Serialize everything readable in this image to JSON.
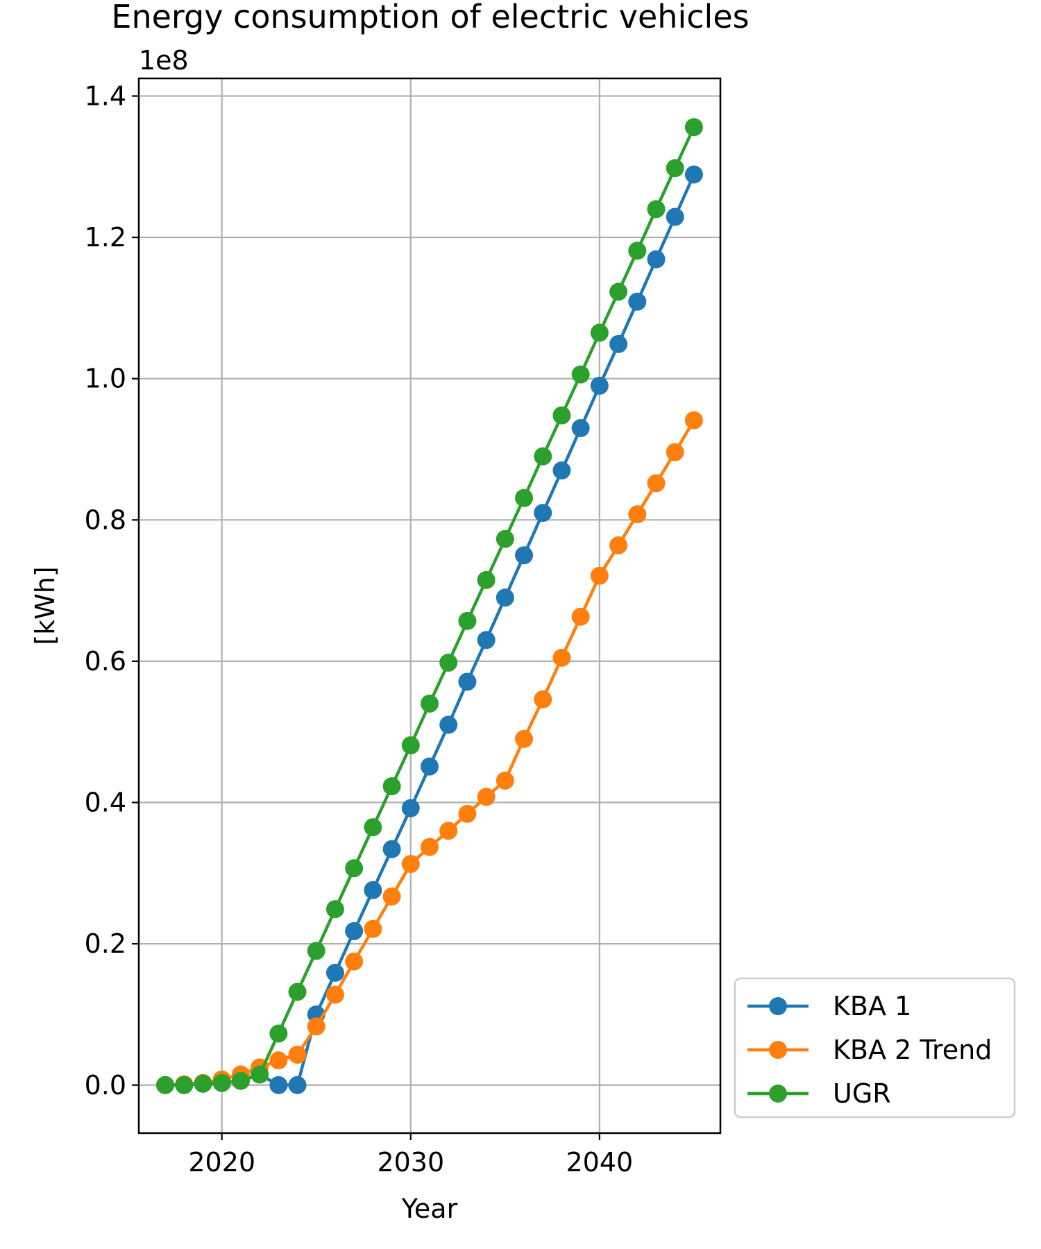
{
  "chart_data": {
    "type": "line",
    "title": "Energy consumption of electric vehicles",
    "xlabel": "Year",
    "ylabel": "[kWh]",
    "y_offset_text": "1e8",
    "y_scale": 100000000,
    "xlim": [
      2015.6,
      2046.4
    ],
    "ylim": [
      -0.068,
      1.425
    ],
    "x_ticks": [
      2020,
      2030,
      2040
    ],
    "x_tick_labels": [
      "2020",
      "2030",
      "2040"
    ],
    "y_ticks": [
      0.0,
      0.2,
      0.4,
      0.6,
      0.8,
      1.0,
      1.2,
      1.4
    ],
    "y_tick_labels": [
      "0.0",
      "0.2",
      "0.4",
      "0.6",
      "0.8",
      "1.0",
      "1.2",
      "1.4"
    ],
    "grid": true,
    "legend_position": "outside-lower-right",
    "x": [
      2017,
      2018,
      2019,
      2020,
      2021,
      2022,
      2023,
      2024,
      2025,
      2026,
      2027,
      2028,
      2029,
      2030,
      2031,
      2032,
      2033,
      2034,
      2035,
      2036,
      2037,
      2038,
      2039,
      2040,
      2041,
      2042,
      2043,
      2044,
      2045
    ],
    "series": [
      {
        "name": "KBA 1",
        "color": "#1f77b4",
        "values": [
          0.0,
          0.0,
          0.002,
          0.003,
          0.006,
          0.015,
          0.0,
          0.0,
          0.1,
          0.159,
          0.218,
          0.276,
          0.334,
          0.392,
          0.451,
          0.51,
          0.571,
          0.63,
          0.69,
          0.75,
          0.81,
          0.87,
          0.93,
          0.99,
          1.049,
          1.109,
          1.169,
          1.229,
          1.289
        ]
      },
      {
        "name": "KBA 2 Trend",
        "color": "#ff7f0e",
        "values": [
          0.0,
          0.001,
          0.003,
          0.008,
          0.015,
          0.025,
          0.035,
          0.043,
          0.083,
          0.128,
          0.175,
          0.221,
          0.267,
          0.313,
          0.337,
          0.36,
          0.384,
          0.408,
          0.431,
          0.49,
          0.546,
          0.605,
          0.663,
          0.721,
          0.764,
          0.808,
          0.852,
          0.896,
          0.941
        ]
      },
      {
        "name": "UGR",
        "color": "#2ca02c",
        "values": [
          0.0,
          0.0,
          0.002,
          0.003,
          0.006,
          0.015,
          0.073,
          0.132,
          0.19,
          0.249,
          0.307,
          0.365,
          0.423,
          0.481,
          0.54,
          0.598,
          0.657,
          0.715,
          0.773,
          0.831,
          0.89,
          0.948,
          1.006,
          1.065,
          1.123,
          1.181,
          1.24,
          1.298,
          1.356
        ]
      }
    ]
  }
}
